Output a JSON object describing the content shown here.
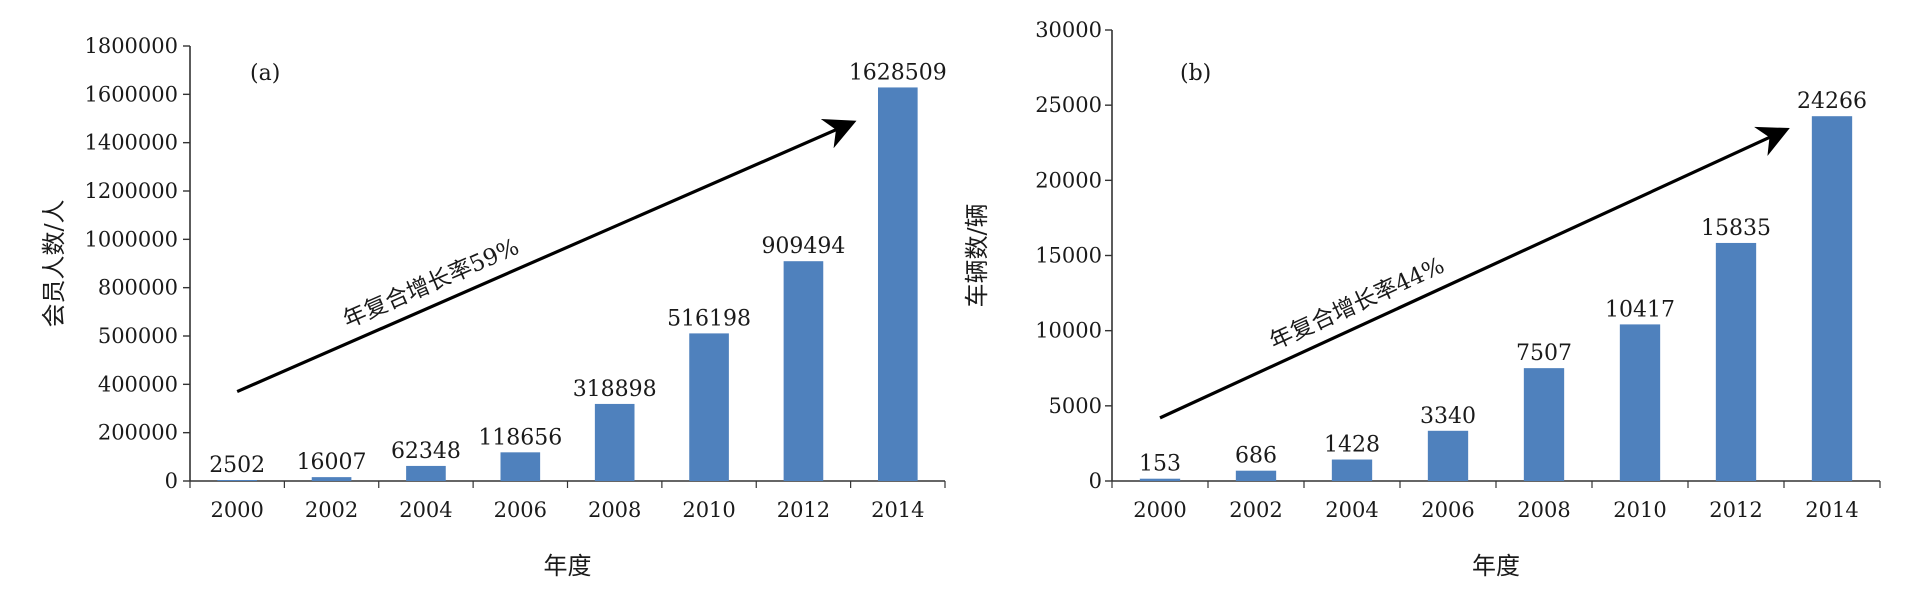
{
  "chart_data": [
    {
      "type": "bar",
      "panel_label": "(a)",
      "categories": [
        "2000",
        "2002",
        "2004",
        "2006",
        "2008",
        "2010",
        "2012",
        "2014"
      ],
      "values": [
        2502,
        16007,
        62348,
        118656,
        318898,
        516198,
        909494,
        1628509
      ],
      "data_labels": [
        "2502",
        "16007",
        "62348",
        "118656",
        "318898",
        "516198",
        "909494",
        "1628509"
      ],
      "xlabel": "年度",
      "ylabel": "会员人数/人",
      "ylim": [
        0,
        1800000
      ],
      "yticks": [
        0,
        200000,
        400000,
        500000,
        800000,
        1000000,
        1200000,
        1400000,
        1600000,
        1800000
      ],
      "ytick_labels": [
        "0",
        "200000",
        "400000",
        "500000",
        "800000",
        "1000000",
        "1200000",
        "1400000",
        "1600000",
        "1800000"
      ],
      "annotation": "年复合增长率59%",
      "arrow": {
        "from": {
          "x": "2000",
          "y": 370000
        },
        "to": {
          "x": "2013",
          "y": 1480000
        }
      },
      "grid": false,
      "legend": "none",
      "bar_color": "#4f81bd"
    },
    {
      "type": "bar",
      "panel_label": "(b)",
      "categories": [
        "2000",
        "2002",
        "2004",
        "2006",
        "2008",
        "2010",
        "2012",
        "2014"
      ],
      "values": [
        153,
        686,
        1428,
        3340,
        7507,
        10417,
        15835,
        24266
      ],
      "data_labels": [
        "153",
        "686",
        "1428",
        "3340",
        "7507",
        "10417",
        "15835",
        "24266"
      ],
      "xlabel": "年度",
      "ylabel": "车辆数/辆",
      "ylim": [
        0,
        30000
      ],
      "yticks": [
        0,
        5000,
        10000,
        15000,
        20000,
        25000,
        30000
      ],
      "ytick_labels": [
        "0",
        "5000",
        "10000",
        "15000",
        "20000",
        "25000",
        "30000"
      ],
      "annotation": "年复合增长率44%",
      "arrow": {
        "from": {
          "x": "2000",
          "y": 4200
        },
        "to": {
          "x": "2013",
          "y": 23300
        }
      },
      "grid": false,
      "legend": "none",
      "bar_color": "#4f81bd"
    }
  ]
}
